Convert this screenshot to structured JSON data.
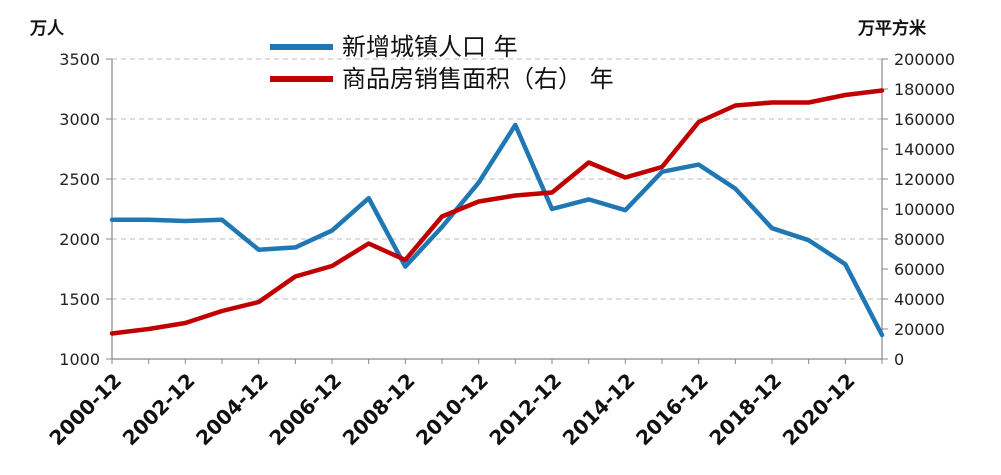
{
  "chart_data": {
    "type": "line",
    "left_unit": "万人",
    "right_unit": "万平方米",
    "x": [
      "2000-12",
      "2001-12",
      "2002-12",
      "2003-12",
      "2004-12",
      "2005-12",
      "2006-12",
      "2007-12",
      "2008-12",
      "2009-12",
      "2010-12",
      "2011-12",
      "2012-12",
      "2013-12",
      "2014-12",
      "2015-12",
      "2016-12",
      "2017-12",
      "2018-12",
      "2019-12",
      "2020-12",
      "2021-12"
    ],
    "x_tick_labels": [
      "2000-12",
      "2002-12",
      "2004-12",
      "2006-12",
      "2008-12",
      "2010-12",
      "2012-12",
      "2014-12",
      "2016-12",
      "2018-12",
      "2020-12"
    ],
    "y_left_ticks": [
      "3500",
      "3000",
      "2500",
      "2000",
      "1500",
      "1000"
    ],
    "y_right_ticks": [
      "200000",
      "180000",
      "160000",
      "140000",
      "120000",
      "100000",
      "80000",
      "60000",
      "40000",
      "20000",
      "0"
    ],
    "y_left_lim": [
      1000,
      3500
    ],
    "y_right_lim": [
      0,
      200000
    ],
    "grid": "horizontal-dashed",
    "legend_position": "top-center",
    "series": [
      {
        "name": "新增城镇人口 年",
        "axis": "left",
        "color": "#1f77b4",
        "values": [
          2160,
          2160,
          2150,
          2160,
          1910,
          1930,
          2070,
          2340,
          1770,
          2100,
          2470,
          2950,
          2250,
          2330,
          2240,
          2560,
          2620,
          2420,
          2090,
          1990,
          1790,
          1200
        ]
      },
      {
        "name": "商品房销售面积（右） 年",
        "axis": "right",
        "color": "#c00000",
        "values": [
          17000,
          20000,
          24000,
          32000,
          38000,
          55000,
          62000,
          77000,
          66000,
          95000,
          105000,
          109000,
          111000,
          131000,
          121000,
          128000,
          158000,
          169000,
          171000,
          171000,
          176000,
          179000
        ]
      }
    ]
  }
}
